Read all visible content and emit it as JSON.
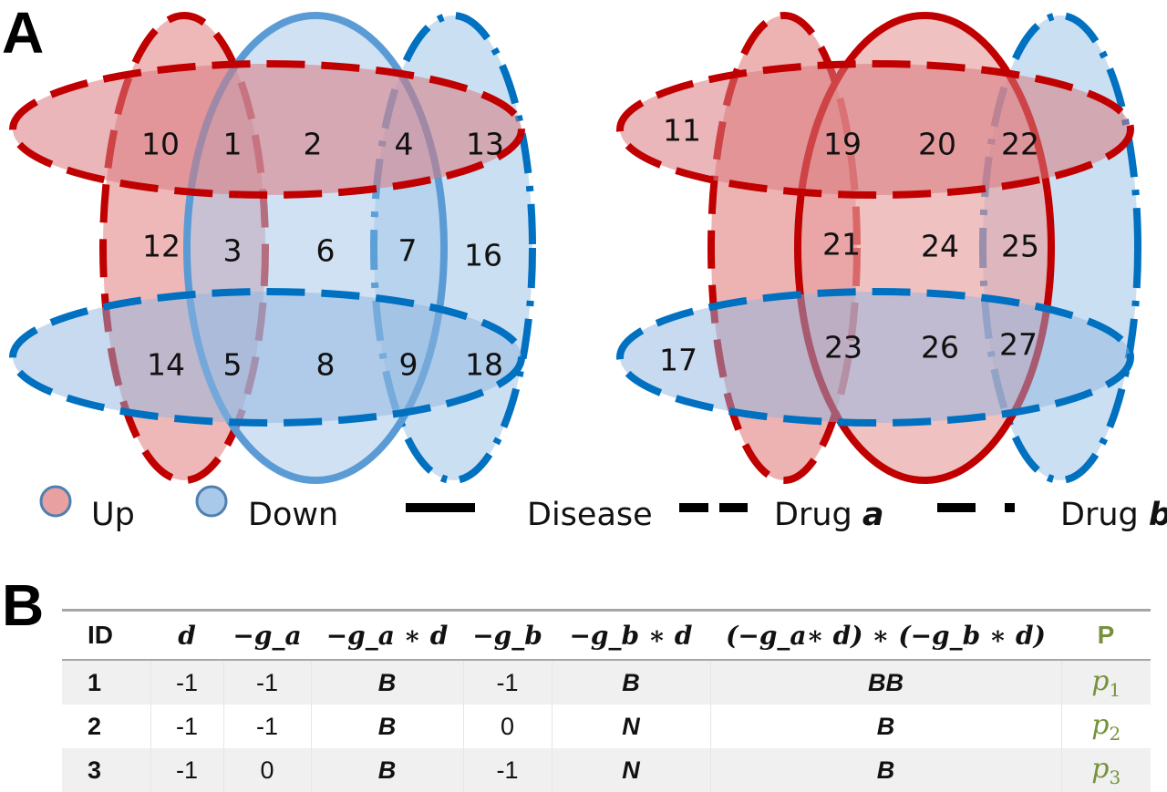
{
  "panels": {
    "a_label": "A",
    "b_label": "B"
  },
  "colors": {
    "up_fill": "#e8a0a0",
    "up_stroke": "#c00000",
    "down_fill": "#a9c9ea",
    "down_stroke": "#0070c0",
    "disease_down_stroke": "#5b9bd5",
    "p_color": "#76923c"
  },
  "venn_left": {
    "regions": [
      "10",
      "1",
      "2",
      "4",
      "13",
      "12",
      "3",
      "6",
      "7",
      "16",
      "14",
      "5",
      "8",
      "9",
      "18"
    ]
  },
  "venn_right": {
    "regions": [
      "11",
      "19",
      "20",
      "22",
      "21",
      "24",
      "25",
      "17",
      "23",
      "26",
      "27"
    ]
  },
  "legend": {
    "up": "Up",
    "down": "Down",
    "disease": "Disease",
    "drug_a_prefix": "Drug ",
    "drug_a_symbol": "a",
    "drug_b_prefix": "Drug ",
    "drug_b_symbol": "b"
  },
  "table": {
    "headers": [
      "ID",
      "d",
      "−g_a",
      "−g_a ∗ d",
      "−g_b",
      "−g_b ∗ d",
      "(−g_a∗ d) ∗ (−g_b ∗ d)",
      "P"
    ],
    "rows": [
      {
        "id": "1",
        "d": "-1",
        "ga": "-1",
        "gad": "B",
        "gb": "-1",
        "gbd": "B",
        "prod": "BB",
        "p": "p",
        "p_sub": "1"
      },
      {
        "id": "2",
        "d": "-1",
        "ga": "-1",
        "gad": "B",
        "gb": "0",
        "gbd": "N",
        "prod": "B",
        "p": "p",
        "p_sub": "2"
      },
      {
        "id": "3",
        "d": "-1",
        "ga": "0",
        "gad": "B",
        "gb": "-1",
        "gbd": "N",
        "prod": "B",
        "p": "p",
        "p_sub": "3"
      }
    ]
  }
}
